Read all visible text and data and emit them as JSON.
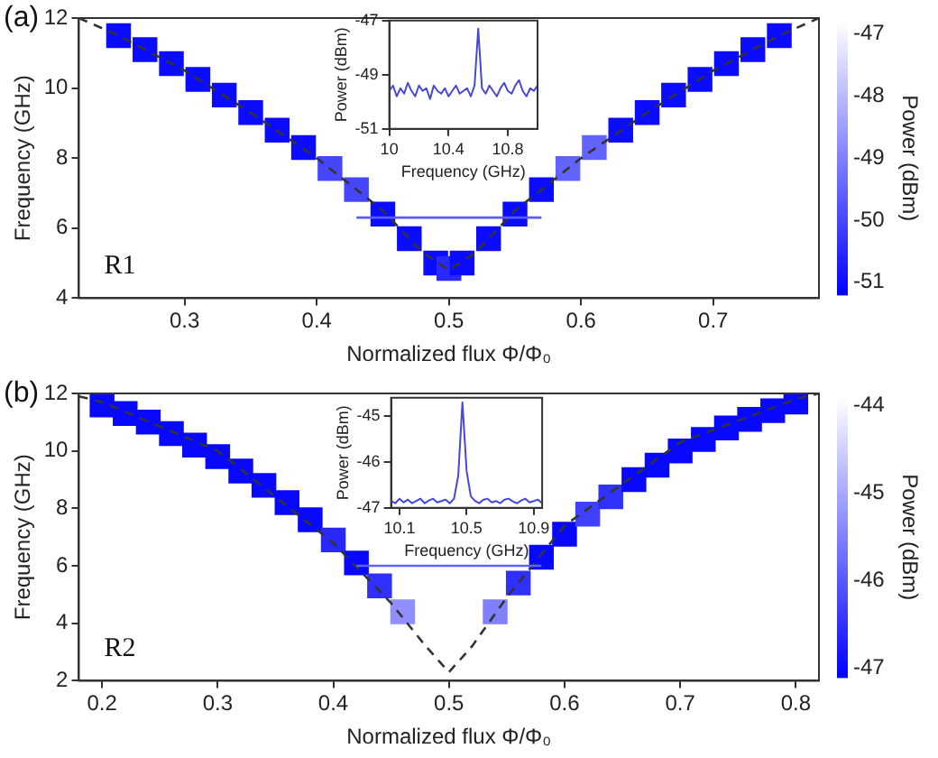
{
  "chart_data": [
    {
      "type": "scatter",
      "xlabel": "Normalized flux Φ/Φ₀",
      "ylabel": "Frequency (GHz)",
      "clabel": "Power (dBm)",
      "annotations": [
        "(a)",
        "R1"
      ],
      "xlim": [
        0.22,
        0.78
      ],
      "xticks": [
        0.3,
        0.4,
        0.5,
        0.6,
        0.7
      ],
      "ylim": [
        4,
        12
      ],
      "yticks": [
        4,
        6,
        8,
        10,
        12
      ],
      "clim": [
        -51.2,
        -46.8
      ],
      "cticks": [
        -51,
        -50,
        -49,
        -48,
        -47
      ],
      "series": [
        {
          "marker": "square",
          "x": [
            0.25,
            0.27,
            0.29,
            0.31,
            0.33,
            0.35,
            0.37,
            0.39,
            0.41,
            0.43,
            0.45,
            0.47,
            0.49,
            0.5,
            0.51,
            0.53,
            0.55,
            0.57,
            0.59,
            0.61,
            0.63,
            0.65,
            0.67,
            0.69,
            0.71,
            0.73,
            0.75
          ],
          "values": [
            11.5,
            11.1,
            10.7,
            10.25,
            9.8,
            9.3,
            8.8,
            8.3,
            7.7,
            7.1,
            6.4,
            5.7,
            5.0,
            4.85,
            5.0,
            5.7,
            6.4,
            7.1,
            7.7,
            8.3,
            8.8,
            9.3,
            9.8,
            10.25,
            10.7,
            11.1,
            11.5
          ],
          "cvalues": [
            -51,
            -51,
            -51,
            -51,
            -51,
            -51,
            -51,
            -51,
            -50,
            -50,
            -51,
            -51,
            -51,
            -50.5,
            -51,
            -51,
            -51,
            -51,
            -49.5,
            -49.5,
            -51,
            -51,
            -51,
            -51,
            -51,
            -51,
            -51
          ],
          "colors": [
            "#0b0bff",
            "#0b0bff",
            "#0b0bff",
            "#0b0bff",
            "#0b0bff",
            "#0b0bff",
            "#0b0bff",
            "#0b0bff",
            "#4646ff",
            "#4646ff",
            "#0b0bff",
            "#0b0bff",
            "#0b0bff",
            "#2929ff",
            "#0b0bff",
            "#0b0bff",
            "#0b0bff",
            "#0b0bff",
            "#6262ff",
            "#6262ff",
            "#0b0bff",
            "#0b0bff",
            "#0b0bff",
            "#0b0bff",
            "#0b0bff",
            "#0b0bff",
            "#0b0bff"
          ]
        },
        {
          "type": "line",
          "marker": "none",
          "line_style": "solid",
          "color": "#5a5aff",
          "x": [
            0.43,
            0.57
          ],
          "values": [
            6.3,
            6.3
          ]
        },
        {
          "type": "line",
          "marker": "none",
          "line_style": "dashed",
          "color": "#333333",
          "x": [
            0.22,
            0.25,
            0.3,
            0.35,
            0.4,
            0.45,
            0.48,
            0.5,
            0.52,
            0.55,
            0.6,
            0.65,
            0.7,
            0.75,
            0.78
          ],
          "values": [
            12.0,
            11.5,
            10.5,
            9.3,
            8.0,
            6.5,
            5.3,
            4.8,
            5.3,
            6.5,
            8.0,
            9.3,
            10.5,
            11.5,
            12.0
          ]
        }
      ]
    },
    {
      "type": "line",
      "xlabel": "Frequency (GHz)",
      "ylabel": "Power (dBm)",
      "xlim": [
        10,
        11
      ],
      "xticks": [
        10,
        10.4,
        10.8
      ],
      "ylim": [
        -51,
        -47
      ],
      "yticks": [
        -51,
        -49,
        -47
      ],
      "series": [
        {
          "marker": "none",
          "line_style": "solid",
          "color": "#4646dc",
          "x": [
            10,
            10.025,
            10.05,
            10.075,
            10.1,
            10.125,
            10.15,
            10.175,
            10.2,
            10.225,
            10.25,
            10.275,
            10.3,
            10.325,
            10.35,
            10.375,
            10.4,
            10.425,
            10.45,
            10.475,
            10.5,
            10.525,
            10.55,
            10.575,
            10.6,
            10.625,
            10.65,
            10.675,
            10.7,
            10.725,
            10.75,
            10.775,
            10.8,
            10.825,
            10.85,
            10.875,
            10.9,
            10.925,
            10.95,
            10.975,
            11
          ],
          "values": [
            -49.6,
            -49.4,
            -49.8,
            -49.5,
            -49.7,
            -49.3,
            -49.6,
            -49.8,
            -49.4,
            -49.6,
            -49.5,
            -49.9,
            -49.4,
            -49.6,
            -49.7,
            -49.5,
            -49.8,
            -49.6,
            -49.4,
            -49.7,
            -49.6,
            -49.5,
            -49.8,
            -49.4,
            -47.3,
            -49.5,
            -49.7,
            -49.4,
            -49.6,
            -49.8,
            -49.5,
            -49.3,
            -49.6,
            -49.7,
            -49.4,
            -49.2,
            -49.6,
            -49.8,
            -49.5,
            -49.6,
            -49.4
          ]
        }
      ]
    },
    {
      "type": "scatter",
      "xlabel": "Normalized flux Φ/Φ₀",
      "ylabel": "Frequency (GHz)",
      "clabel": "Power (dBm)",
      "annotations": [
        "(b)",
        "R2"
      ],
      "xlim": [
        0.18,
        0.82
      ],
      "xticks": [
        0.2,
        0.3,
        0.4,
        0.5,
        0.6,
        0.7,
        0.8
      ],
      "ylim": [
        2,
        12
      ],
      "yticks": [
        2,
        4,
        6,
        8,
        10,
        12
      ],
      "clim": [
        -47.1,
        -43.9
      ],
      "cticks": [
        -47,
        -46,
        -45,
        -44
      ],
      "series": [
        {
          "marker": "square",
          "x": [
            0.2,
            0.22,
            0.24,
            0.26,
            0.28,
            0.3,
            0.32,
            0.34,
            0.36,
            0.38,
            0.4,
            0.42,
            0.44,
            0.46,
            0.54,
            0.56,
            0.58,
            0.6,
            0.62,
            0.64,
            0.66,
            0.68,
            0.7,
            0.72,
            0.74,
            0.76,
            0.78,
            0.8
          ],
          "values": [
            11.6,
            11.3,
            11.0,
            10.6,
            10.2,
            9.8,
            9.3,
            8.8,
            8.2,
            7.6,
            6.9,
            6.1,
            5.3,
            4.4,
            4.4,
            5.4,
            6.3,
            7.1,
            7.8,
            8.4,
            9.0,
            9.5,
            10.0,
            10.4,
            10.8,
            11.1,
            11.4,
            11.7
          ],
          "cvalues": [
            -47,
            -47,
            -47,
            -47,
            -47,
            -47,
            -47,
            -47,
            -47,
            -47,
            -46.6,
            -47,
            -46.5,
            -45.3,
            -45.5,
            -46.5,
            -47,
            -47,
            -46.3,
            -46.5,
            -47,
            -47,
            -47,
            -47,
            -47,
            -47,
            -47,
            -47
          ],
          "colors": [
            "#0808ff",
            "#0808ff",
            "#0808ff",
            "#0808ff",
            "#0808ff",
            "#0808ff",
            "#0808ff",
            "#0808ff",
            "#0808ff",
            "#0808ff",
            "#2828ff",
            "#0808ff",
            "#3030ff",
            "#8f8fff",
            "#8080ff",
            "#3030ff",
            "#0808ff",
            "#0808ff",
            "#4040ff",
            "#3030ff",
            "#0808ff",
            "#0808ff",
            "#0808ff",
            "#0808ff",
            "#0808ff",
            "#0808ff",
            "#0808ff",
            "#0808ff"
          ]
        },
        {
          "type": "line",
          "marker": "none",
          "line_style": "solid",
          "color": "#6060ff",
          "x": [
            0.42,
            0.58
          ],
          "values": [
            6.0,
            6.0
          ]
        },
        {
          "type": "line",
          "marker": "none",
          "line_style": "dashed",
          "color": "#333333",
          "x": [
            0.18,
            0.2,
            0.3,
            0.4,
            0.45,
            0.48,
            0.5,
            0.52,
            0.55,
            0.6,
            0.7,
            0.8,
            0.82
          ],
          "values": [
            11.9,
            11.7,
            10.0,
            6.8,
            4.7,
            3.2,
            2.3,
            3.2,
            4.9,
            7.4,
            10.3,
            11.8,
            12.0
          ]
        }
      ]
    },
    {
      "type": "line",
      "xlabel": "Frequency (GHz)",
      "ylabel": "Power (dBm)",
      "xlim": [
        10.05,
        10.95
      ],
      "xticks": [
        10.1,
        10.5,
        10.9
      ],
      "ylim": [
        -47,
        -44.6
      ],
      "yticks": [
        -47,
        -46,
        -45
      ],
      "series": [
        {
          "marker": "none",
          "line_style": "solid",
          "color": "#4646dc",
          "x": [
            10.05,
            10.075,
            10.1,
            10.125,
            10.15,
            10.175,
            10.2,
            10.225,
            10.25,
            10.275,
            10.3,
            10.325,
            10.35,
            10.375,
            10.4,
            10.425,
            10.45,
            10.475,
            10.5,
            10.525,
            10.55,
            10.575,
            10.6,
            10.625,
            10.65,
            10.675,
            10.7,
            10.725,
            10.75,
            10.775,
            10.8,
            10.825,
            10.85,
            10.875,
            10.9,
            10.925,
            10.95
          ],
          "values": [
            -46.85,
            -46.9,
            -46.8,
            -46.88,
            -46.82,
            -46.9,
            -46.85,
            -46.8,
            -46.9,
            -46.84,
            -46.8,
            -46.88,
            -46.85,
            -46.82,
            -46.9,
            -46.8,
            -46.3,
            -44.7,
            -46.2,
            -46.75,
            -46.85,
            -46.9,
            -46.82,
            -46.8,
            -46.88,
            -46.85,
            -46.9,
            -46.82,
            -46.8,
            -46.86,
            -46.9,
            -46.84,
            -46.8,
            -46.88,
            -46.85,
            -46.82,
            -46.9
          ]
        }
      ]
    }
  ]
}
